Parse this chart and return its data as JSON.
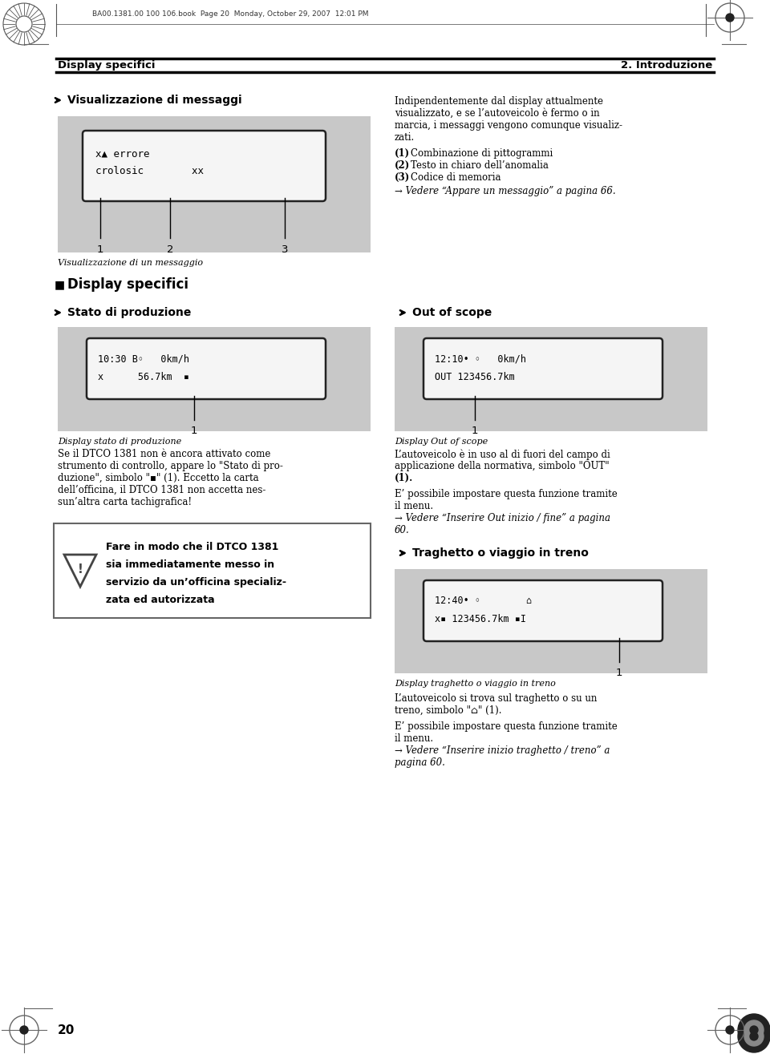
{
  "page_bg": "#ffffff",
  "header_text_left": "Display specifici",
  "header_text_right": "2. Introduzione",
  "header_book_info": "BA00.1381.00 100 106.book  Page 20  Monday, October 29, 2007  12:01 PM",
  "footer_page_number": "20",
  "section1_heading": "Visualizzazione di messaggi",
  "section1_right_text": [
    "Indipendentemente dal display attualmente",
    "visualizzato, e se l’autoveicolo è fermo o in",
    "marcia, i messaggi vengono comunque visualiz-",
    "zati."
  ],
  "section1_list": [
    [
      "(1)",
      " Combinazione di pittogrammi"
    ],
    [
      "(2)",
      " Testo in chiaro dell’anomalia"
    ],
    [
      "(3)",
      " Codice di memoria"
    ]
  ],
  "section1_ref": "→ Vedere “Appare un messaggio” a pagina 66.",
  "section1_caption": "Visualizzazione di un messaggio",
  "display1_line1": "x▲ errore",
  "display1_line2": "crolosic        xx",
  "section2_heading": "Display specifici",
  "section3_heading": "Stato di produzione",
  "section3_right_heading": "Out of scope",
  "display2_line1": "10:30 B◦   0km/h",
  "display2_line2": "x      56.7km  ▪",
  "display2_caption": "Display stato di produzione",
  "display3_line1": "12:10• ◦   0km/h",
  "display3_line2": "OUT 123456.7km",
  "display3_caption": "Display Out of scope",
  "section3_left_text": [
    "Se il DTCO 1381 non è ancora attivato come",
    "strumento di controllo, appare lo \"Stato di pro-",
    "duzione\", simbolo \"▪\" (1). Eccetto la carta",
    "dell’officina, il DTCO 1381 non accetta nes-",
    "sun’altra carta tachigrafica!"
  ],
  "section3_right_text1": [
    "L’autoveicolo è in uso al di fuori del campo di",
    "applicazione della normativa, simbolo \"OUT\""
  ],
  "section3_right_text1b": "(1).",
  "section3_right_text2": [
    "E’ possibile impostare questa funzione tramite",
    "il menu."
  ],
  "section3_right_ref": "→ Vedere “Inserire Out inizio / fine” a pagina",
  "section3_right_ref2": "60.",
  "warning_text": [
    "Fare in modo che il DTCO 1381",
    "sia immediatamente messo in",
    "servizio da un’officina specializ-",
    "zata ed autorizzata"
  ],
  "section4_right_heading": "Traghetto o viaggio in treno",
  "display4_line1": "12:40• ◦        ⌂",
  "display4_line2": "x▪ 123456.7km ▪I",
  "display4_caption": "Display traghetto o viaggio in treno",
  "section4_right_text1": [
    "L’autoveicolo si trova sul traghetto o su un",
    "treno, simbolo \"⌂\" (1)."
  ],
  "section4_right_text2": [
    "E’ possibile impostare questa funzione tramite",
    "il menu."
  ],
  "section4_right_ref": "→ Vedere “Inserire inizio traghetto / treno” a",
  "section4_right_ref2": "pagina 60.",
  "display_bg": "#c8c8c8",
  "text_color": "#000000"
}
